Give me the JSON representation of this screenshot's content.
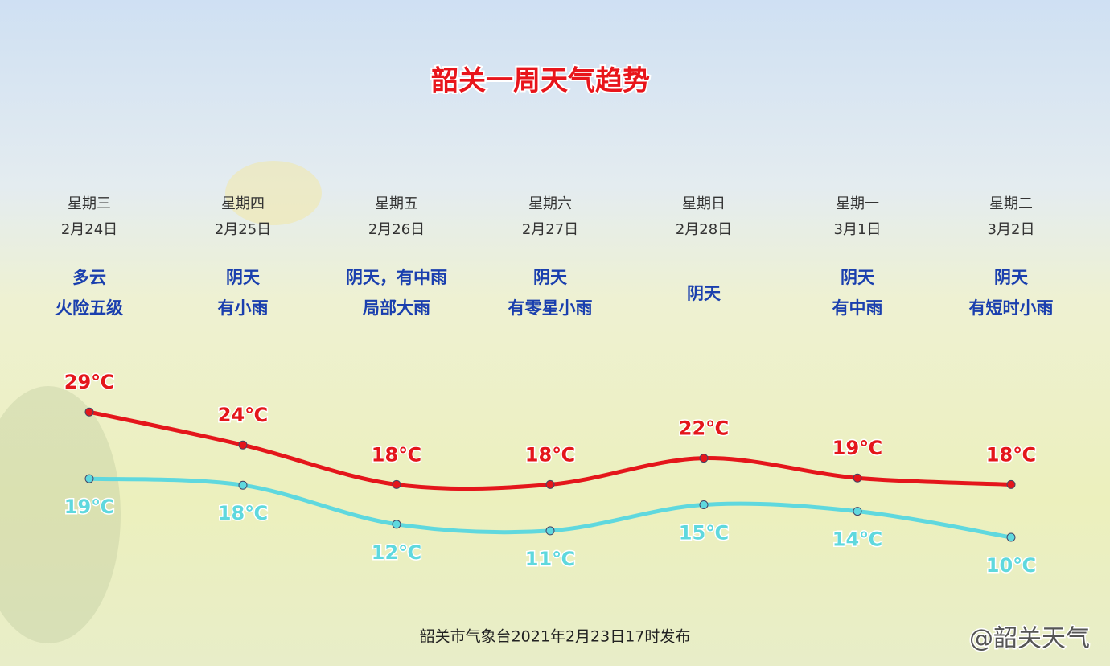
{
  "chart_data": {
    "type": "line",
    "title": "韶关一周天气趋势",
    "weekdays": [
      "星期三",
      "星期四",
      "星期五",
      "星期六",
      "星期日",
      "星期一",
      "星期二"
    ],
    "categories": [
      "2月24日",
      "2月25日",
      "2月26日",
      "2月27日",
      "2月28日",
      "3月1日",
      "3月2日"
    ],
    "weather": [
      [
        "多云",
        "火险五级"
      ],
      [
        "阴天",
        "有小雨"
      ],
      [
        "阴天，有中雨",
        "局部大雨"
      ],
      [
        "阴天",
        "有零星小雨"
      ],
      [
        "阴天"
      ],
      [
        "阴天",
        "有中雨"
      ],
      [
        "阴天",
        "有短时小雨"
      ]
    ],
    "series": [
      {
        "color": "#e4161b",
        "values": [
          29,
          24,
          18,
          18,
          22,
          19,
          18
        ],
        "value_labels": [
          "29℃",
          "24℃",
          "18℃",
          "18℃",
          "22℃",
          "19℃",
          "18℃"
        ]
      },
      {
        "color": "#5fd8de",
        "values": [
          19,
          18,
          12,
          11,
          15,
          14,
          10
        ],
        "value_labels": [
          "19℃",
          "18℃",
          "12℃",
          "11℃",
          "15℃",
          "14℃",
          "10℃"
        ]
      }
    ],
    "footer": "韶关市气象台2021年2月23日17时发布",
    "watermark": "@韶关天气"
  }
}
